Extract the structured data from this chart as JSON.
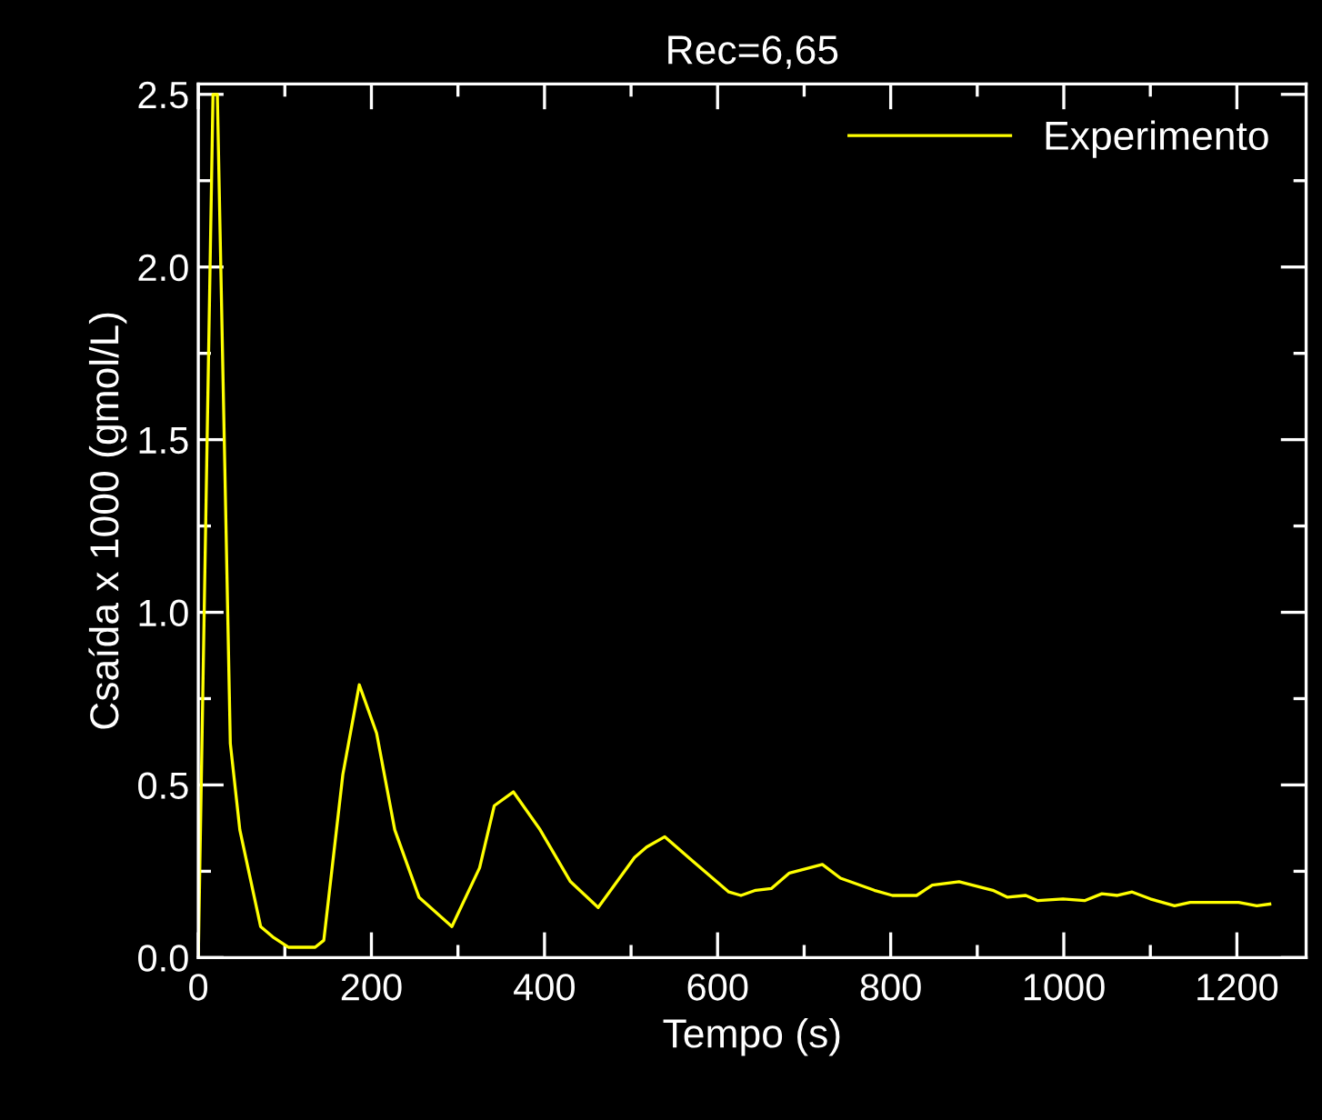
{
  "chart_data": {
    "type": "line",
    "title": "Rec=6,65",
    "xlabel": "Tempo (s)",
    "ylabel": "Csaída x 1000 (gmol/L)",
    "xlim": [
      0,
      1280
    ],
    "ylim": [
      0,
      2.53
    ],
    "xticks": [
      0,
      {
        "value": 100,
        "label": null
      },
      200,
      {
        "value": 300,
        "label": null
      },
      400,
      {
        "value": 500,
        "label": null
      },
      600,
      {
        "value": 700,
        "label": null
      },
      800,
      {
        "value": 900,
        "label": null
      },
      1000,
      {
        "value": 1100,
        "label": null
      },
      1200
    ],
    "yticks": [
      {
        "value": 0,
        "label": "0.0"
      },
      {
        "value": 0.25,
        "label": null
      },
      0.5,
      {
        "value": 0.75,
        "label": null
      },
      {
        "value": 1,
        "label": "1.0"
      },
      {
        "value": 1.25,
        "label": null
      },
      1.5,
      {
        "value": 1.75,
        "label": null
      },
      {
        "value": 2,
        "label": "2.0"
      },
      {
        "value": 2.25,
        "label": null
      },
      2.5
    ],
    "grid": false,
    "legend": "top right",
    "marker": "none",
    "line_style": "solid",
    "series": [
      {
        "name": "Experimento",
        "color": "#ffff00",
        "x": [
          0,
          17,
          22,
          30,
          37,
          48,
          72,
          86,
          104,
          135,
          145,
          167,
          186,
          206,
          227,
          255,
          293,
          325,
          342,
          364,
          395,
          430,
          462,
          504,
          518,
          539,
          571,
          613,
          627,
          644,
          662,
          683,
          721,
          742,
          781,
          802,
          830,
          848,
          879,
          918,
          935,
          956,
          970,
          999,
          1024,
          1044,
          1062,
          1079,
          1100,
          1128,
          1146,
          1174,
          1202,
          1223,
          1238
        ],
        "values": [
          0,
          2.5,
          2.5,
          1.5,
          0.62,
          0.37,
          0.09,
          0.06,
          0.03,
          0.03,
          0.05,
          0.53,
          0.79,
          0.65,
          0.37,
          0.175,
          0.09,
          0.26,
          0.44,
          0.48,
          0.37,
          0.22,
          0.145,
          0.29,
          0.32,
          0.35,
          0.28,
          0.19,
          0.18,
          0.195,
          0.2,
          0.245,
          0.27,
          0.23,
          0.195,
          0.18,
          0.18,
          0.21,
          0.22,
          0.195,
          0.175,
          0.18,
          0.165,
          0.17,
          0.165,
          0.185,
          0.18,
          0.19,
          0.17,
          0.15,
          0.16,
          0.16,
          0.16,
          0.15,
          0.155
        ]
      }
    ]
  }
}
